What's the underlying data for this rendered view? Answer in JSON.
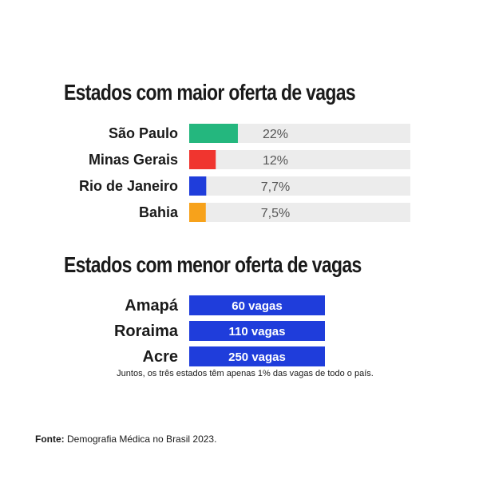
{
  "chart_data": [
    {
      "type": "bar",
      "title": "Estados com maior oferta de vagas",
      "categories": [
        "São Paulo",
        "Minas Gerais",
        "Rio de Janeiro",
        "Bahia"
      ],
      "values": [
        22,
        12,
        7.7,
        7.5
      ],
      "value_labels": [
        "22%",
        "12%",
        "7,7%",
        "7,5%"
      ],
      "colors": [
        "#24b77e",
        "#f0352f",
        "#1f3ddb",
        "#f7a21b"
      ],
      "xlim": [
        0,
        100
      ]
    },
    {
      "type": "bar",
      "title": "Estados com menor oferta de vagas",
      "categories": [
        "Amapá",
        "Roraima",
        "Acre"
      ],
      "values": [
        60,
        110,
        250
      ],
      "value_labels": [
        "60 vagas",
        "110 vagas",
        "250 vagas"
      ],
      "colors": [
        "#1f3ddb"
      ]
    }
  ],
  "note": "Juntos, os três estados têm apenas 1% das vagas de todo o país.",
  "source": {
    "label": "Fonte:",
    "text": "Demografia Médica no Brasil 2023."
  },
  "track_color": "#ececec"
}
